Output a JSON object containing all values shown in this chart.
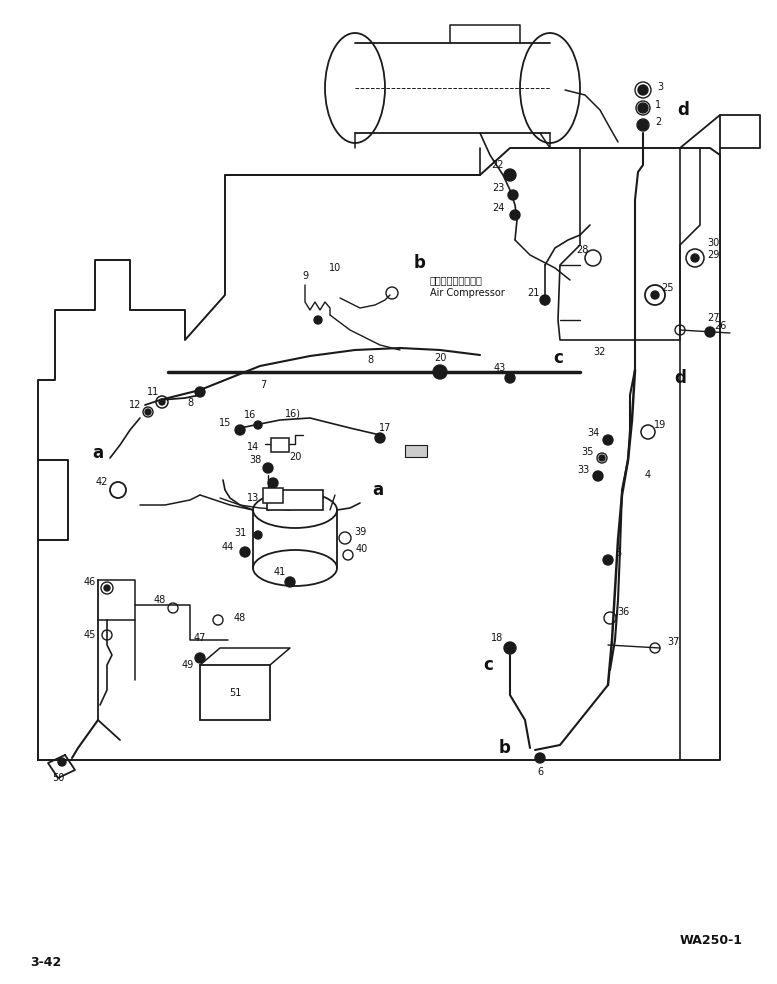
{
  "page_label": "3-42",
  "model_label": "WA250-1",
  "bg_color": "#ffffff",
  "lc": "#1a1a1a",
  "ac": "#111111",
  "figsize": [
    7.77,
    9.84
  ],
  "dpi": 100,
  "air_jp": "エアーコンプレッサ",
  "air_en": "Air Compressor"
}
